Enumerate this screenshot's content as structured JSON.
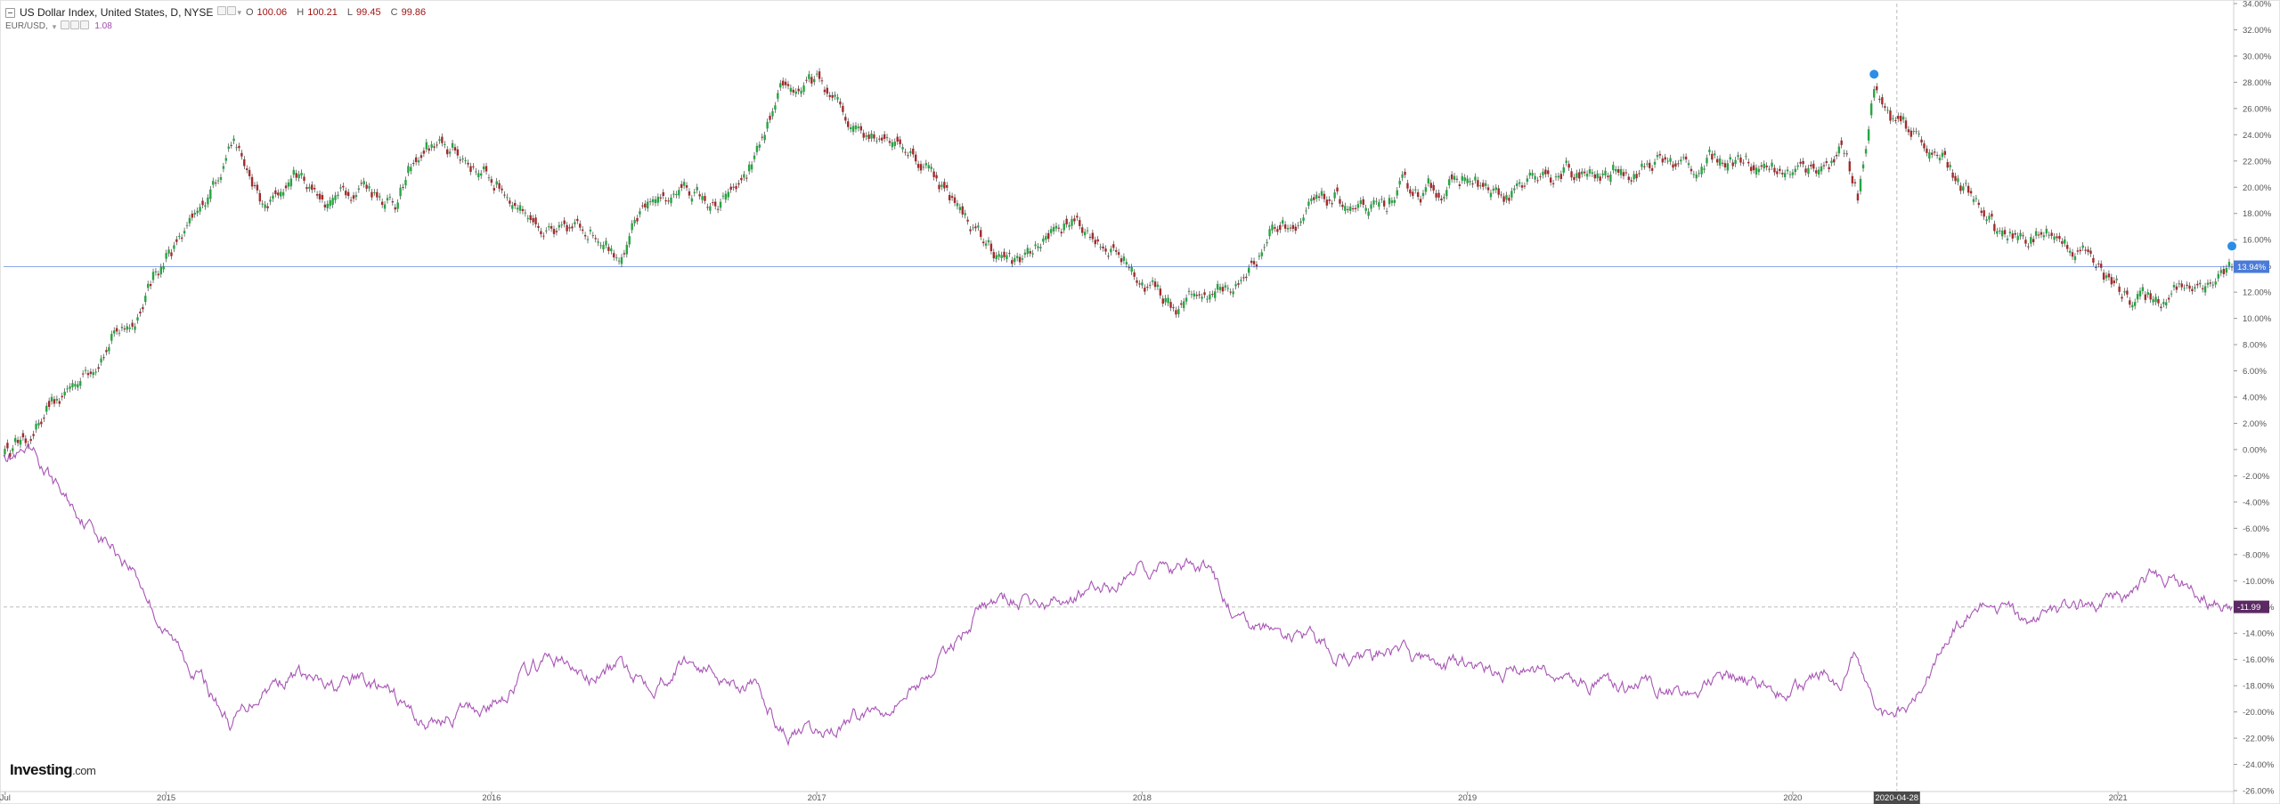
{
  "legend": {
    "title": "US Dollar Index, United States, D, NYSE",
    "ohlc": [
      {
        "key": "O",
        "value": "100.06"
      },
      {
        "key": "H",
        "value": "100.21"
      },
      {
        "key": "L",
        "value": "99.45"
      },
      {
        "key": "C",
        "value": "99.86"
      }
    ],
    "compare_label": "EUR/USD,",
    "compare_value": "1.08"
  },
  "logo": {
    "brand": "Investing",
    "suffix": ".com"
  },
  "colors": {
    "up": "#26a641",
    "down": "#a52a2a",
    "wick": "#222222",
    "eurusd": "#a855b5",
    "last_dxy_label_bg": "#4a7bd8",
    "last_eur_label_bg": "#5b2a63",
    "axis_text": "#555555",
    "crosshair": "#bbbbbb"
  },
  "chart_data": {
    "type": "line",
    "title": "US Dollar Index, United States, D, NYSE",
    "y_unit": "percent change",
    "ylim": [
      -26,
      34
    ],
    "y_ticks": [
      "34.00%",
      "32.00%",
      "30.00%",
      "28.00%",
      "26.00%",
      "24.00%",
      "22.00%",
      "20.00%",
      "18.00%",
      "16.00%",
      "14.00%",
      "12.00%",
      "10.00%",
      "8.00%",
      "6.00%",
      "4.00%",
      "2.00%",
      "0.00%",
      "-2.00%",
      "-4.00%",
      "-6.00%",
      "-8.00%",
      "-10.00%",
      "-12.00%",
      "-14.00%",
      "-16.00%",
      "-18.00%",
      "-20.00%",
      "-22.00%",
      "-24.00%",
      "-26.00%"
    ],
    "x_ticks": [
      "Jul",
      "2015",
      "2016",
      "2017",
      "2018",
      "2019",
      "2020",
      "2021"
    ],
    "xlim": [
      2014.5,
      2021.35
    ],
    "grid": false,
    "crosshair": {
      "x": 2020.32,
      "x_label": "2020-04-28",
      "y": -12.0
    },
    "series": [
      {
        "name": "US Dollar Index",
        "style": "candlestick",
        "last_label": "13.94%",
        "x": [
          2014.5,
          2014.6,
          2014.7,
          2014.8,
          2014.9,
          2015.0,
          2015.1,
          2015.2,
          2015.3,
          2015.4,
          2015.5,
          2015.6,
          2015.7,
          2015.8,
          2015.9,
          2016.0,
          2016.1,
          2016.2,
          2016.3,
          2016.4,
          2016.5,
          2016.6,
          2016.7,
          2016.8,
          2016.9,
          2017.0,
          2017.1,
          2017.2,
          2017.3,
          2017.4,
          2017.5,
          2017.6,
          2017.7,
          2017.8,
          2017.9,
          2018.0,
          2018.1,
          2018.2,
          2018.3,
          2018.4,
          2018.5,
          2018.6,
          2018.7,
          2018.8,
          2018.9,
          2019.0,
          2019.1,
          2019.2,
          2019.3,
          2019.4,
          2019.5,
          2019.6,
          2019.7,
          2019.8,
          2019.9,
          2020.0,
          2020.1,
          2020.15,
          2020.2,
          2020.25,
          2020.3,
          2020.4,
          2020.5,
          2020.6,
          2020.7,
          2020.8,
          2020.9,
          2021.0,
          2021.1,
          2021.2,
          2021.3,
          2021.35
        ],
        "values": [
          0.0,
          1.5,
          4.5,
          7.5,
          10.0,
          15.0,
          17.5,
          24.0,
          18.0,
          21.0,
          19.0,
          20.5,
          19.0,
          23.0,
          22.5,
          20.5,
          18.5,
          16.0,
          17.0,
          15.5,
          19.0,
          20.0,
          18.0,
          21.5,
          27.0,
          28.0,
          25.0,
          24.5,
          22.5,
          20.0,
          16.0,
          14.0,
          16.0,
          17.5,
          15.5,
          13.0,
          11.0,
          12.0,
          12.5,
          17.0,
          18.0,
          19.0,
          17.5,
          19.5,
          20.0,
          20.5,
          19.0,
          20.0,
          21.0,
          20.5,
          21.5,
          22.0,
          21.5,
          22.5,
          22.0,
          21.0,
          22.0,
          23.0,
          19.0,
          28.0,
          25.0,
          23.5,
          21.0,
          17.0,
          16.0,
          16.5,
          15.0,
          12.0,
          11.5,
          12.5,
          13.0,
          13.94
        ]
      },
      {
        "name": "EUR/USD",
        "style": "line",
        "last_label": "-11.99",
        "x": [
          2014.5,
          2014.6,
          2014.7,
          2014.8,
          2014.9,
          2015.0,
          2015.1,
          2015.2,
          2015.3,
          2015.4,
          2015.5,
          2015.6,
          2015.7,
          2015.8,
          2015.9,
          2016.0,
          2016.1,
          2016.2,
          2016.3,
          2016.4,
          2016.5,
          2016.6,
          2016.7,
          2016.8,
          2016.9,
          2017.0,
          2017.1,
          2017.2,
          2017.3,
          2017.4,
          2017.5,
          2017.6,
          2017.7,
          2017.8,
          2017.9,
          2018.0,
          2018.1,
          2018.2,
          2018.3,
          2018.4,
          2018.5,
          2018.6,
          2018.7,
          2018.8,
          2018.9,
          2019.0,
          2019.1,
          2019.2,
          2019.3,
          2019.4,
          2019.5,
          2019.6,
          2019.7,
          2019.8,
          2019.9,
          2020.0,
          2020.1,
          2020.15,
          2020.2,
          2020.25,
          2020.3,
          2020.4,
          2020.5,
          2020.6,
          2020.7,
          2020.8,
          2020.9,
          2021.0,
          2021.1,
          2021.2,
          2021.3,
          2021.35
        ],
        "values": [
          0.0,
          -1.0,
          -4.0,
          -6.5,
          -9.0,
          -14.0,
          -17.0,
          -21.0,
          -18.0,
          -17.0,
          -18.5,
          -17.5,
          -19.0,
          -21.0,
          -20.0,
          -19.5,
          -17.0,
          -16.0,
          -17.5,
          -16.5,
          -17.5,
          -16.0,
          -17.0,
          -18.0,
          -21.5,
          -22.0,
          -20.5,
          -19.5,
          -18.0,
          -15.5,
          -12.0,
          -11.5,
          -12.0,
          -11.0,
          -10.5,
          -8.5,
          -9.5,
          -9.0,
          -13.5,
          -14.0,
          -14.5,
          -15.5,
          -16.0,
          -15.5,
          -16.5,
          -16.5,
          -17.0,
          -16.5,
          -17.5,
          -18.0,
          -18.5,
          -18.0,
          -18.5,
          -17.5,
          -18.0,
          -18.5,
          -17.0,
          -19.5,
          -16.0,
          -20.0,
          -20.5,
          -18.0,
          -13.5,
          -12.0,
          -13.0,
          -12.5,
          -12.0,
          -11.5,
          -10.0,
          -10.0,
          -11.5,
          -11.99
        ]
      }
    ]
  }
}
